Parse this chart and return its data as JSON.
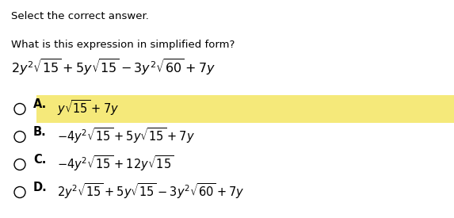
{
  "background_color": "#ffffff",
  "header_text": "Select the correct answer.",
  "question_text": "What is this expression in simplified form?",
  "highlight_color": "#f5e97a",
  "text_color": "#000000",
  "font_size_header": 9.5,
  "font_size_question": 9.5,
  "font_size_expression": 11.5,
  "font_size_options": 10.5,
  "option_labels": [
    "A.",
    "B.",
    "C.",
    "D."
  ],
  "option_highlighted": [
    true,
    false,
    false,
    false
  ],
  "option_expressions": [
    "$y\\sqrt{15} + 7y$",
    "$-4y^2\\sqrt{15} + 5y\\sqrt{15} + 7y$",
    "$-4y^2\\sqrt{15} + 12y\\sqrt{15}$",
    "$2y^2\\sqrt{15} + 5y\\sqrt{15} - 3y^2\\sqrt{60} + 7y$"
  ],
  "main_expression": "$2y^2\\sqrt{15} + 5y\\sqrt{15} - 3y^2\\sqrt{60} + 7y$"
}
